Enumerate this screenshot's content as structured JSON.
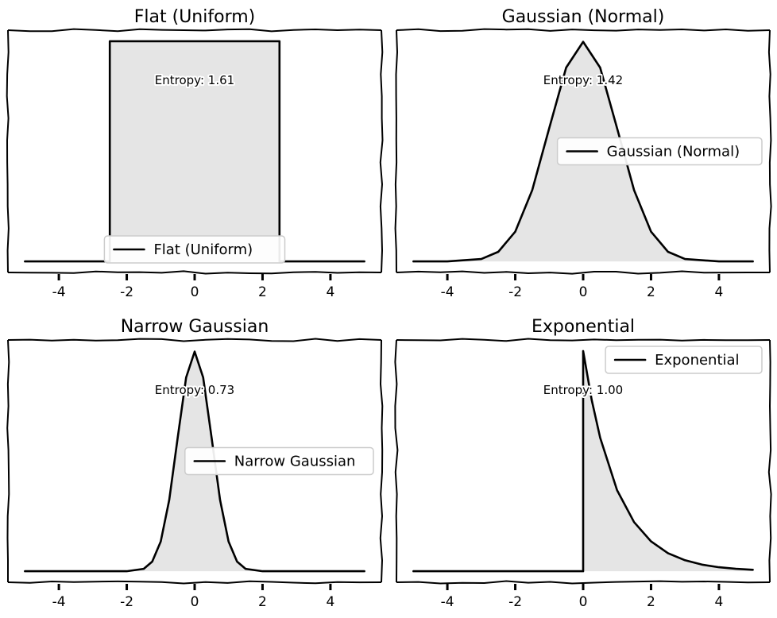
{
  "chart_data": [
    {
      "type": "area",
      "title": "Flat (Uniform)",
      "xlabel": "",
      "ylabel": "",
      "xlim": [
        -5.5,
        5.5
      ],
      "ylim": [
        -0.0125,
        0.2625
      ],
      "xticks": [
        -4,
        -2,
        0,
        2,
        4
      ],
      "xtick_labels": [
        "-4",
        "-2",
        "0",
        "2",
        "4"
      ],
      "annotation": "Entropy: 1.61",
      "legend": {
        "label": "Flat (Uniform)",
        "position": "lower-center"
      },
      "series": [
        {
          "name": "Flat (Uniform)",
          "color": "#000000",
          "fill": "#e5e5e5",
          "x": [
            -5,
            -2.5,
            -2.5,
            2.5,
            2.5,
            5
          ],
          "y": [
            0,
            0,
            0.25,
            0.25,
            0,
            0
          ]
        }
      ]
    },
    {
      "type": "area",
      "title": "Gaussian (Normal)",
      "xlabel": "",
      "ylabel": "",
      "xlim": [
        -5.5,
        5.5
      ],
      "ylim": [
        -0.02,
        0.42
      ],
      "xticks": [
        -4,
        -2,
        0,
        2,
        4
      ],
      "xtick_labels": [
        "-4",
        "-2",
        "0",
        "2",
        "4"
      ],
      "annotation": "Entropy: 1.42",
      "legend": {
        "label": "Gaussian (Normal)",
        "position": "center-right"
      },
      "series": [
        {
          "name": "Gaussian (Normal)",
          "color": "#000000",
          "fill": "#e5e5e5",
          "x": [
            -5,
            -4,
            -3,
            -2.5,
            -2,
            -1.5,
            -1,
            -0.5,
            0,
            0.5,
            1,
            1.5,
            2,
            2.5,
            3,
            4,
            5
          ],
          "y": [
            0,
            0.0001,
            0.0044,
            0.0175,
            0.054,
            0.1295,
            0.242,
            0.352,
            0.399,
            0.352,
            0.242,
            0.1295,
            0.054,
            0.0175,
            0.0044,
            0.0001,
            0
          ]
        }
      ]
    },
    {
      "type": "area",
      "title": "Narrow Gaussian",
      "xlabel": "",
      "ylabel": "",
      "xlim": [
        -5.5,
        5.5
      ],
      "ylim": [
        -0.04,
        0.84
      ],
      "xticks": [
        -4,
        -2,
        0,
        2,
        4
      ],
      "xtick_labels": [
        "-4",
        "-2",
        "0",
        "2",
        "4"
      ],
      "annotation": "Entropy: 0.73",
      "legend": {
        "label": "Narrow Gaussian",
        "position": "center-right"
      },
      "series": [
        {
          "name": "Narrow Gaussian",
          "color": "#000000",
          "fill": "#e5e5e5",
          "x": [
            -5,
            -2,
            -1.5,
            -1.25,
            -1,
            -0.75,
            -0.5,
            -0.25,
            0,
            0.25,
            0.5,
            0.75,
            1,
            1.25,
            1.5,
            2,
            5
          ],
          "y": [
            0,
            0.0001,
            0.0089,
            0.035,
            0.108,
            0.259,
            0.484,
            0.704,
            0.798,
            0.704,
            0.484,
            0.259,
            0.108,
            0.035,
            0.0089,
            0.0001,
            0
          ]
        }
      ]
    },
    {
      "type": "area",
      "title": "Exponential",
      "xlabel": "",
      "ylabel": "",
      "xlim": [
        -5.5,
        5.5
      ],
      "ylim": [
        -0.05,
        1.05
      ],
      "xticks": [
        -4,
        -2,
        0,
        2,
        4
      ],
      "xtick_labels": [
        "-4",
        "-2",
        "0",
        "2",
        "4"
      ],
      "annotation": "Entropy: 1.00",
      "legend": {
        "label": "Exponential",
        "position": "upper-right"
      },
      "series": [
        {
          "name": "Exponential",
          "color": "#000000",
          "fill": "#e5e5e5",
          "x": [
            -5,
            0,
            0,
            0.25,
            0.5,
            1,
            1.5,
            2,
            2.5,
            3,
            3.5,
            4,
            4.5,
            5
          ],
          "y": [
            0,
            0,
            1,
            0.7788,
            0.6065,
            0.3679,
            0.2231,
            0.1353,
            0.0821,
            0.0498,
            0.0302,
            0.0183,
            0.0111,
            0.0067
          ]
        }
      ]
    }
  ]
}
